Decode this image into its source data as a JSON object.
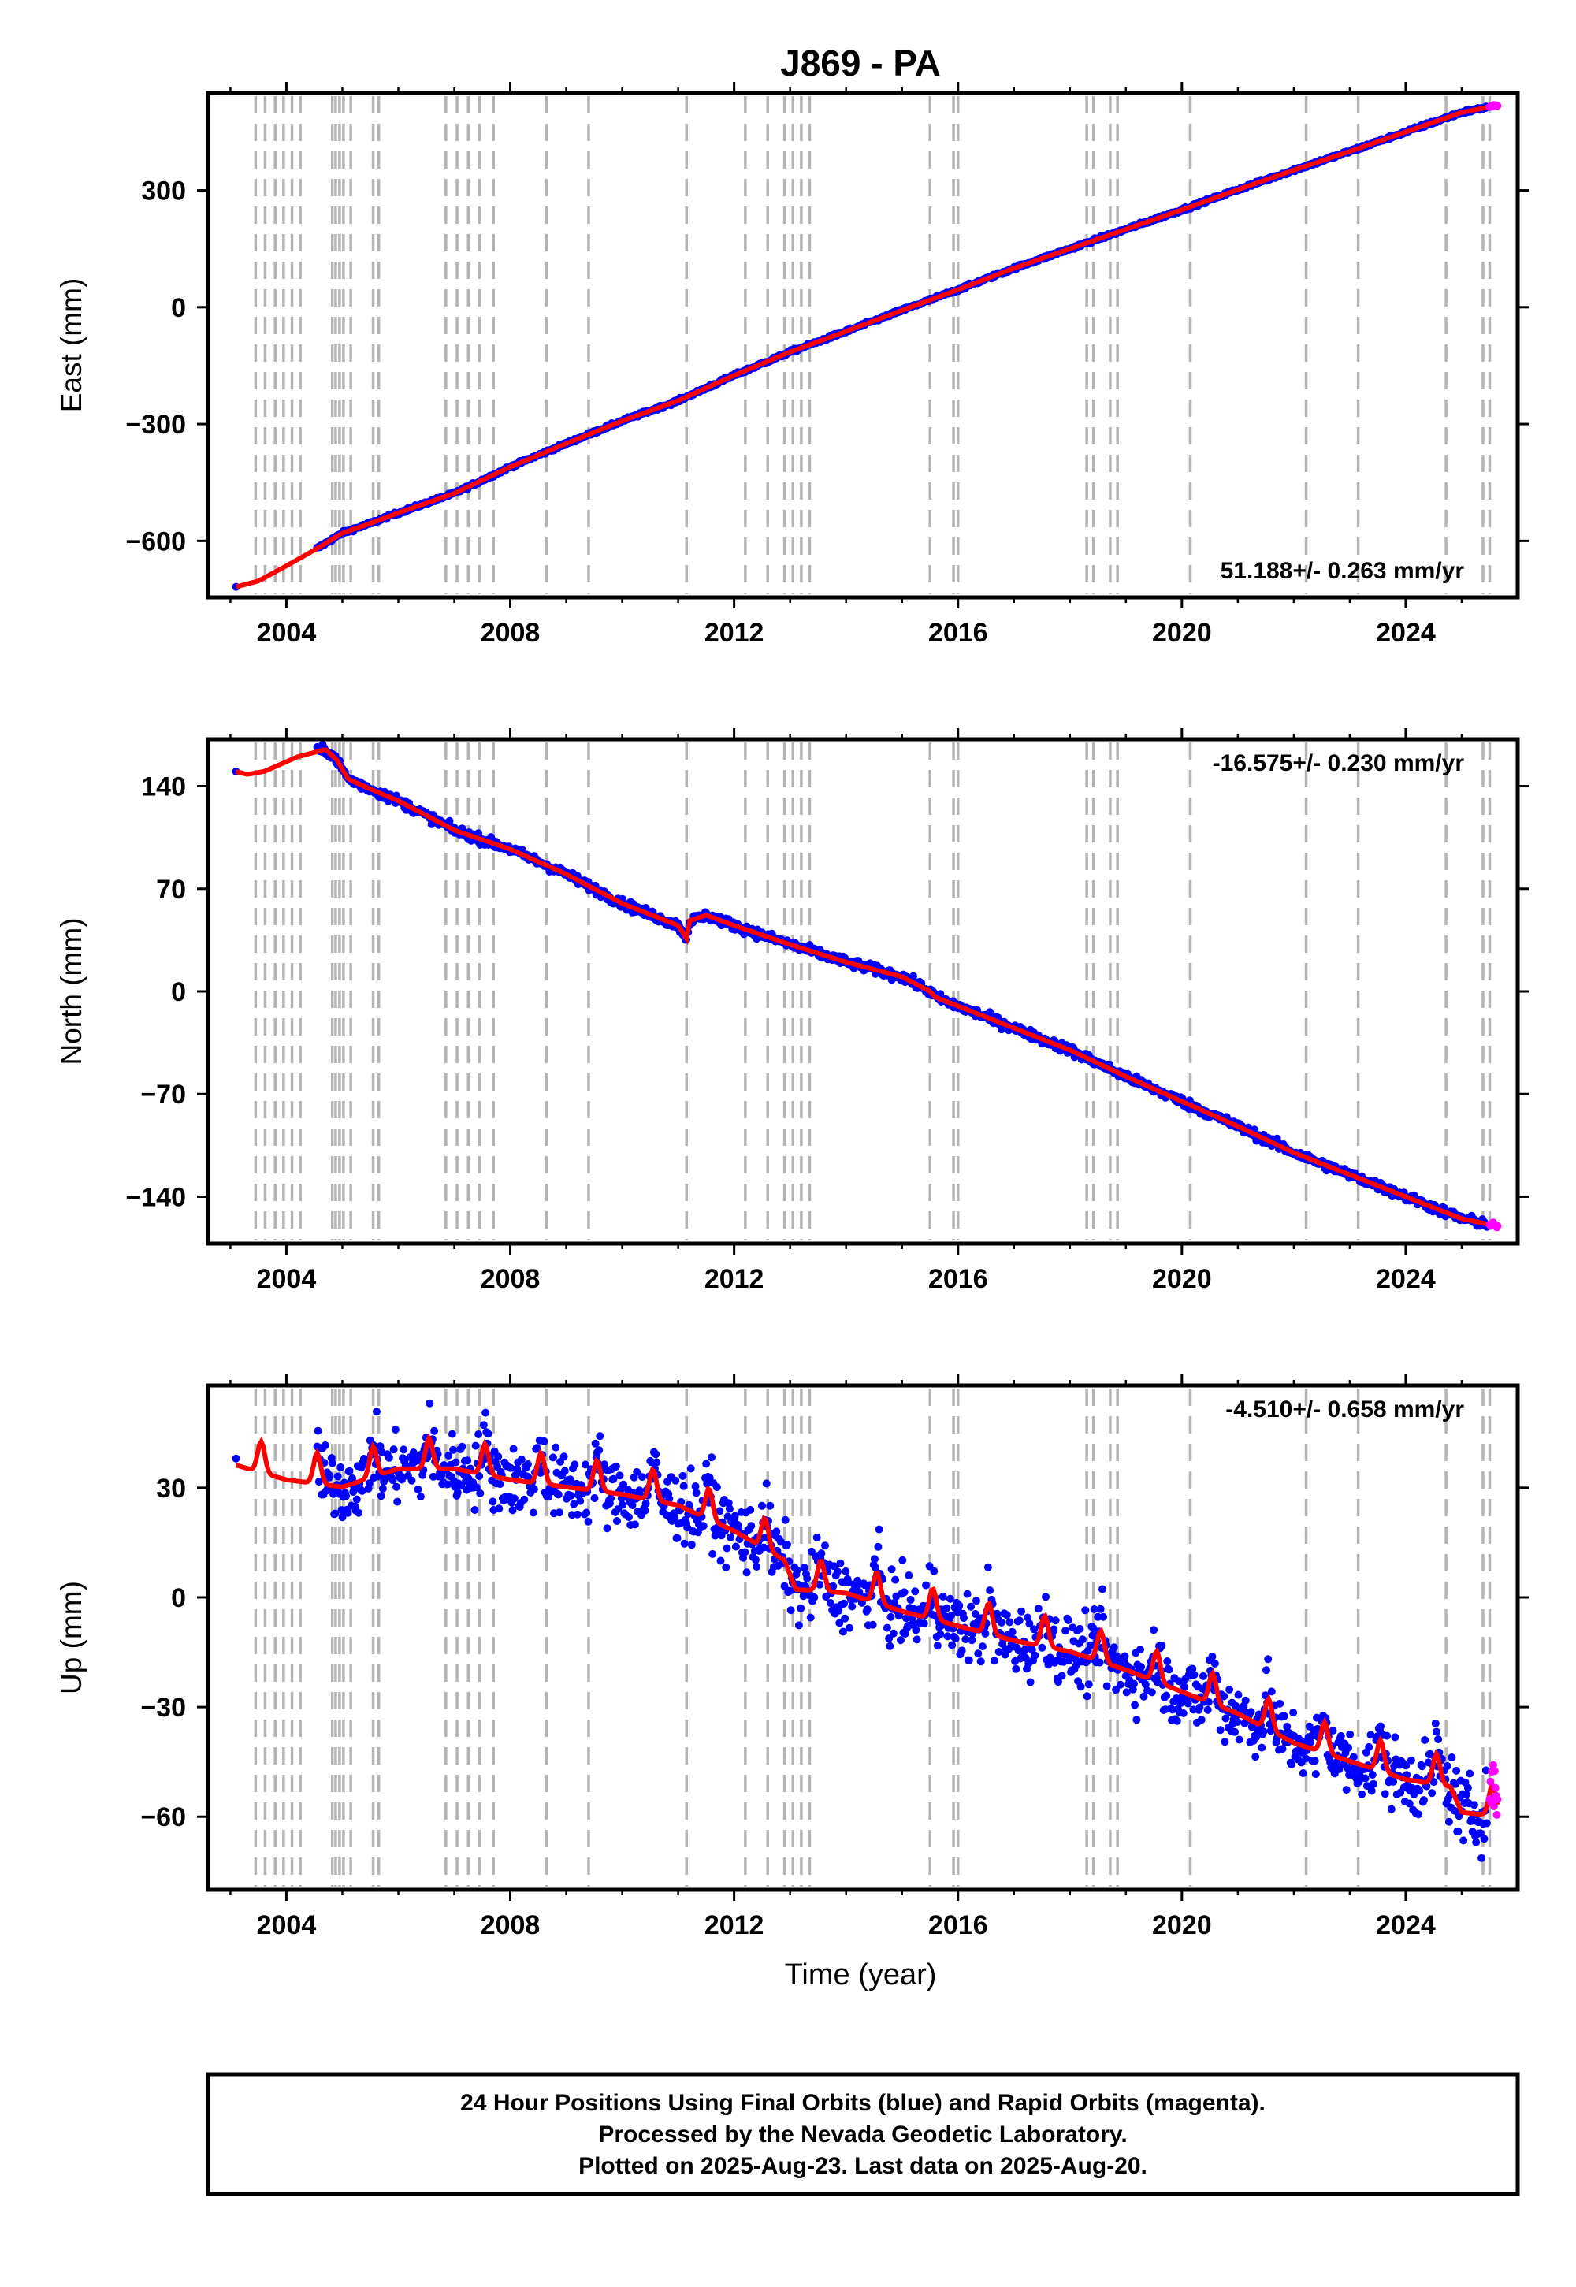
{
  "chart_data": {
    "type": "scatter",
    "title": "J869 - PA",
    "xlabel": "Time (year)",
    "x_ticks": [
      2004,
      2008,
      2012,
      2016,
      2020,
      2024
    ],
    "x_range": [
      2002.6,
      2026.0
    ],
    "data_range": [
      2003.1,
      2025.64
    ],
    "equipment_change_epochs": [
      2003.45,
      2003.62,
      2003.8,
      2003.95,
      2004.1,
      2004.25,
      2004.82,
      2004.88,
      2004.95,
      2005.02,
      2005.15,
      2005.55,
      2005.65,
      2006.85,
      2007.05,
      2007.25,
      2007.45,
      2007.7,
      2008.65,
      2009.4,
      2011.15,
      2012.2,
      2012.6,
      2012.9,
      2013.05,
      2013.2,
      2013.35,
      2015.5,
      2015.92,
      2016.0,
      2018.3,
      2018.42,
      2018.72,
      2018.85,
      2020.15,
      2022.22,
      2023.15,
      2024.72,
      2025.38,
      2025.5
    ],
    "series": [
      {
        "name": "24 Hour Positions Using Final Orbits (blue)",
        "color": "#0000ff"
      },
      {
        "name": "Rapid Orbits (magenta)",
        "color": "#ff00ff"
      },
      {
        "name": "model fit",
        "color": "#ff0000"
      }
    ],
    "panels": [
      {
        "id": "east",
        "ylabel": "East (mm)",
        "y_ticks": [
          300,
          0,
          -300,
          -600
        ],
        "y_tick_labels": [
          "300",
          "0",
          "−300",
          "−600"
        ],
        "y_range": [
          -745,
          550
        ],
        "rate_label": "51.188+/- 0.263 mm/yr",
        "rate_position": "bottom-right",
        "trend_points": [
          [
            2003.1,
            -718
          ],
          [
            2003.5,
            -703
          ],
          [
            2003.9,
            -672
          ],
          [
            2004.3,
            -640
          ],
          [
            2004.6,
            -615
          ],
          [
            2005.0,
            -580
          ],
          [
            2005.5,
            -555
          ],
          [
            2006.0,
            -528
          ],
          [
            2007.0,
            -478
          ],
          [
            2008.0,
            -410
          ],
          [
            2009.0,
            -350
          ],
          [
            2010.0,
            -292
          ],
          [
            2011.0,
            -240
          ],
          [
            2012.0,
            -175
          ],
          [
            2013.0,
            -115
          ],
          [
            2014.0,
            -62
          ],
          [
            2015.0,
            -8
          ],
          [
            2016.0,
            45
          ],
          [
            2017.0,
            100
          ],
          [
            2018.0,
            150
          ],
          [
            2019.0,
            200
          ],
          [
            2020.0,
            250
          ],
          [
            2021.0,
            302
          ],
          [
            2022.0,
            352
          ],
          [
            2023.0,
            400
          ],
          [
            2024.0,
            450
          ],
          [
            2025.0,
            500
          ],
          [
            2025.62,
            518
          ]
        ],
        "scatter_noise": 4
      },
      {
        "id": "north",
        "ylabel": "North (mm)",
        "y_ticks": [
          140,
          70,
          0,
          -70,
          -140
        ],
        "y_tick_labels": [
          "140",
          "70",
          "0",
          "−70",
          "−140"
        ],
        "y_range": [
          -172,
          172
        ],
        "rate_label": "-16.575+/- 0.230 mm/yr",
        "rate_position": "top-right",
        "trend_points": [
          [
            2003.1,
            150
          ],
          [
            2003.3,
            148
          ],
          [
            2003.6,
            150
          ],
          [
            2003.9,
            155
          ],
          [
            2004.2,
            160
          ],
          [
            2004.5,
            163
          ],
          [
            2004.7,
            165
          ],
          [
            2004.9,
            158
          ],
          [
            2005.1,
            145
          ],
          [
            2005.5,
            138
          ],
          [
            2006.0,
            130
          ],
          [
            2007.0,
            110
          ],
          [
            2008.0,
            97
          ],
          [
            2009.0,
            80
          ],
          [
            2010.0,
            60
          ],
          [
            2011.0,
            45
          ],
          [
            2011.15,
            36
          ],
          [
            2011.2,
            48
          ],
          [
            2011.5,
            52
          ],
          [
            2012.0,
            45
          ],
          [
            2013.0,
            32
          ],
          [
            2014.0,
            20
          ],
          [
            2015.0,
            10
          ],
          [
            2015.5,
            0
          ],
          [
            2015.6,
            -4
          ],
          [
            2016.0,
            -10
          ],
          [
            2017.0,
            -25
          ],
          [
            2018.0,
            -40
          ],
          [
            2019.0,
            -58
          ],
          [
            2020.0,
            -75
          ],
          [
            2021.0,
            -92
          ],
          [
            2022.0,
            -110
          ],
          [
            2023.0,
            -125
          ],
          [
            2024.0,
            -140
          ],
          [
            2025.0,
            -155
          ],
          [
            2025.62,
            -160
          ]
        ],
        "scatter_noise": 3
      },
      {
        "id": "up",
        "ylabel": "Up (mm)",
        "y_ticks": [
          30,
          0,
          -30,
          -60
        ],
        "y_tick_labels": [
          "30",
          "0",
          "−30",
          "−60"
        ],
        "y_range": [
          -80,
          58
        ],
        "rate_label": "-4.510+/- 0.658 mm/yr",
        "rate_position": "top-right",
        "trend_points": [
          [
            2003.1,
            38
          ],
          [
            2004.0,
            34
          ],
          [
            2005.0,
            32
          ],
          [
            2006.0,
            37
          ],
          [
            2007.0,
            37
          ],
          [
            2008.0,
            34
          ],
          [
            2009.0,
            32
          ],
          [
            2010.0,
            30
          ],
          [
            2011.0,
            27
          ],
          [
            2012.0,
            20
          ],
          [
            2012.9,
            12
          ],
          [
            2013.1,
            4
          ],
          [
            2014.0,
            3
          ],
          [
            2015.0,
            -2
          ],
          [
            2016.0,
            -6
          ],
          [
            2017.0,
            -10
          ],
          [
            2018.0,
            -13
          ],
          [
            2019.0,
            -18
          ],
          [
            2020.0,
            -24
          ],
          [
            2021.0,
            -30
          ],
          [
            2022.0,
            -38
          ],
          [
            2023.0,
            -43
          ],
          [
            2024.0,
            -48
          ],
          [
            2024.8,
            -50
          ],
          [
            2025.0,
            -57
          ],
          [
            2025.62,
            -58
          ]
        ],
        "seasonal_amplitude": 6,
        "scatter_noise": 9
      }
    ],
    "footer": [
      "24 Hour Positions Using Final Orbits (blue) and Rapid Orbits (magenta).",
      "Processed by the Nevada Geodetic Laboratory.",
      "Plotted on 2025-Aug-23. Last data on 2025-Aug-20."
    ]
  }
}
